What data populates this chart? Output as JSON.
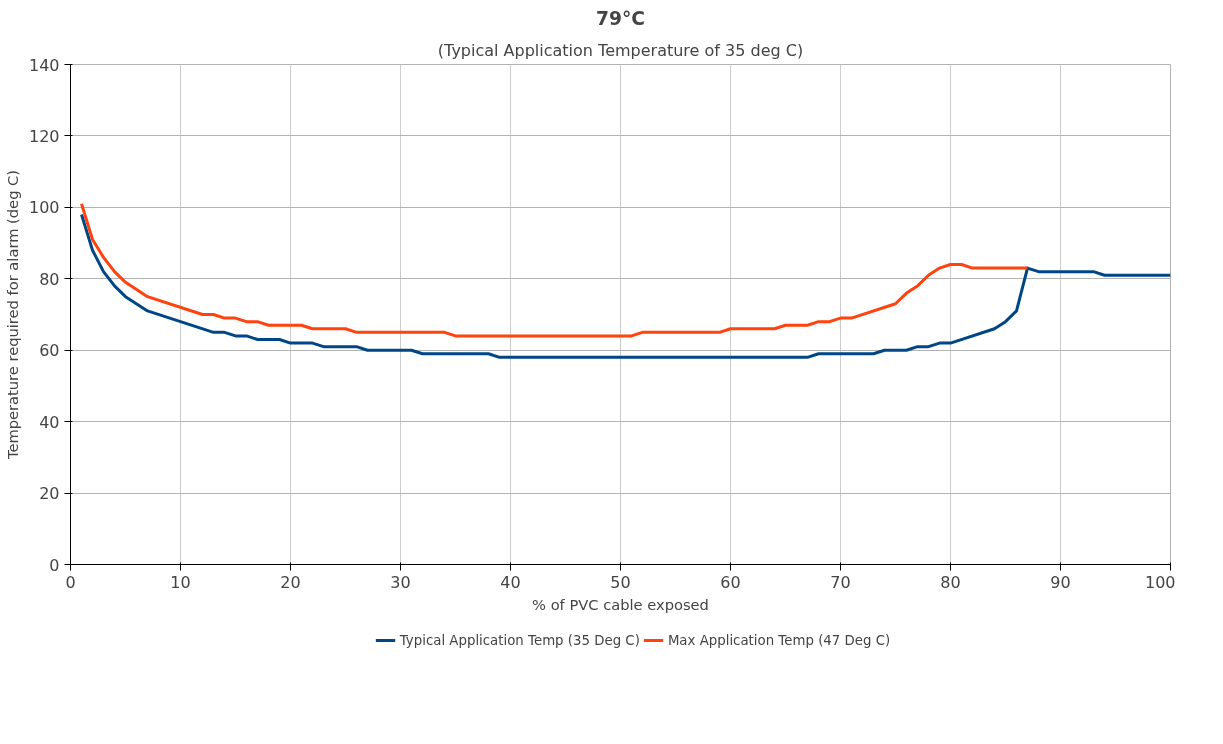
{
  "chart_data": {
    "type": "line",
    "title": "79°C",
    "subtitle": "(Typical Application Temperature of 35 deg C)",
    "xlabel": "% of PVC cable exposed",
    "ylabel": "Temperature required for alarm (deg C)",
    "xlim": [
      0,
      100
    ],
    "xticks": [
      0,
      10,
      20,
      30,
      40,
      50,
      60,
      70,
      80,
      90,
      100
    ],
    "ylim": [
      0,
      140
    ],
    "yticks": [
      0,
      20,
      40,
      60,
      80,
      100,
      120,
      140
    ],
    "grid": true,
    "legend": "bottom",
    "marker": "none",
    "line_style": "solid",
    "series": [
      {
        "name": "Typical Application Temp (35 Deg C)",
        "color": "#004586",
        "x": [
          1,
          2,
          3,
          4,
          5,
          7,
          13,
          14,
          15,
          16,
          17,
          19,
          20,
          22,
          23,
          26,
          27,
          31,
          32,
          38,
          39,
          67,
          68,
          73,
          74,
          76,
          77,
          78,
          79,
          80,
          84,
          85,
          86,
          87,
          88,
          93,
          94,
          100
        ],
        "values": [
          98,
          88,
          82,
          78,
          75,
          71,
          65,
          65,
          64,
          64,
          63,
          63,
          62,
          62,
          61,
          61,
          60,
          60,
          59,
          59,
          58,
          58,
          59,
          59,
          60,
          60,
          61,
          61,
          62,
          62,
          66,
          68,
          71,
          83,
          82,
          82,
          81,
          81
        ]
      },
      {
        "name": "Max Application Temp (47 Deg C)",
        "color": "#ff420e",
        "x": [
          1,
          2,
          3,
          4,
          5,
          7,
          12,
          13,
          14,
          15,
          16,
          17,
          18,
          21,
          22,
          25,
          26,
          34,
          35,
          51,
          52,
          59,
          60,
          64,
          65,
          67,
          68,
          69,
          70,
          71,
          75,
          76,
          77,
          78,
          79,
          80,
          81,
          82,
          87
        ],
        "values": [
          101,
          91,
          86,
          82,
          79,
          75,
          70,
          70,
          69,
          69,
          68,
          68,
          67,
          67,
          66,
          66,
          65,
          65,
          64,
          64,
          65,
          65,
          66,
          66,
          67,
          67,
          68,
          68,
          69,
          69,
          73,
          76,
          78,
          81,
          83,
          84,
          84,
          83,
          83
        ]
      }
    ]
  }
}
